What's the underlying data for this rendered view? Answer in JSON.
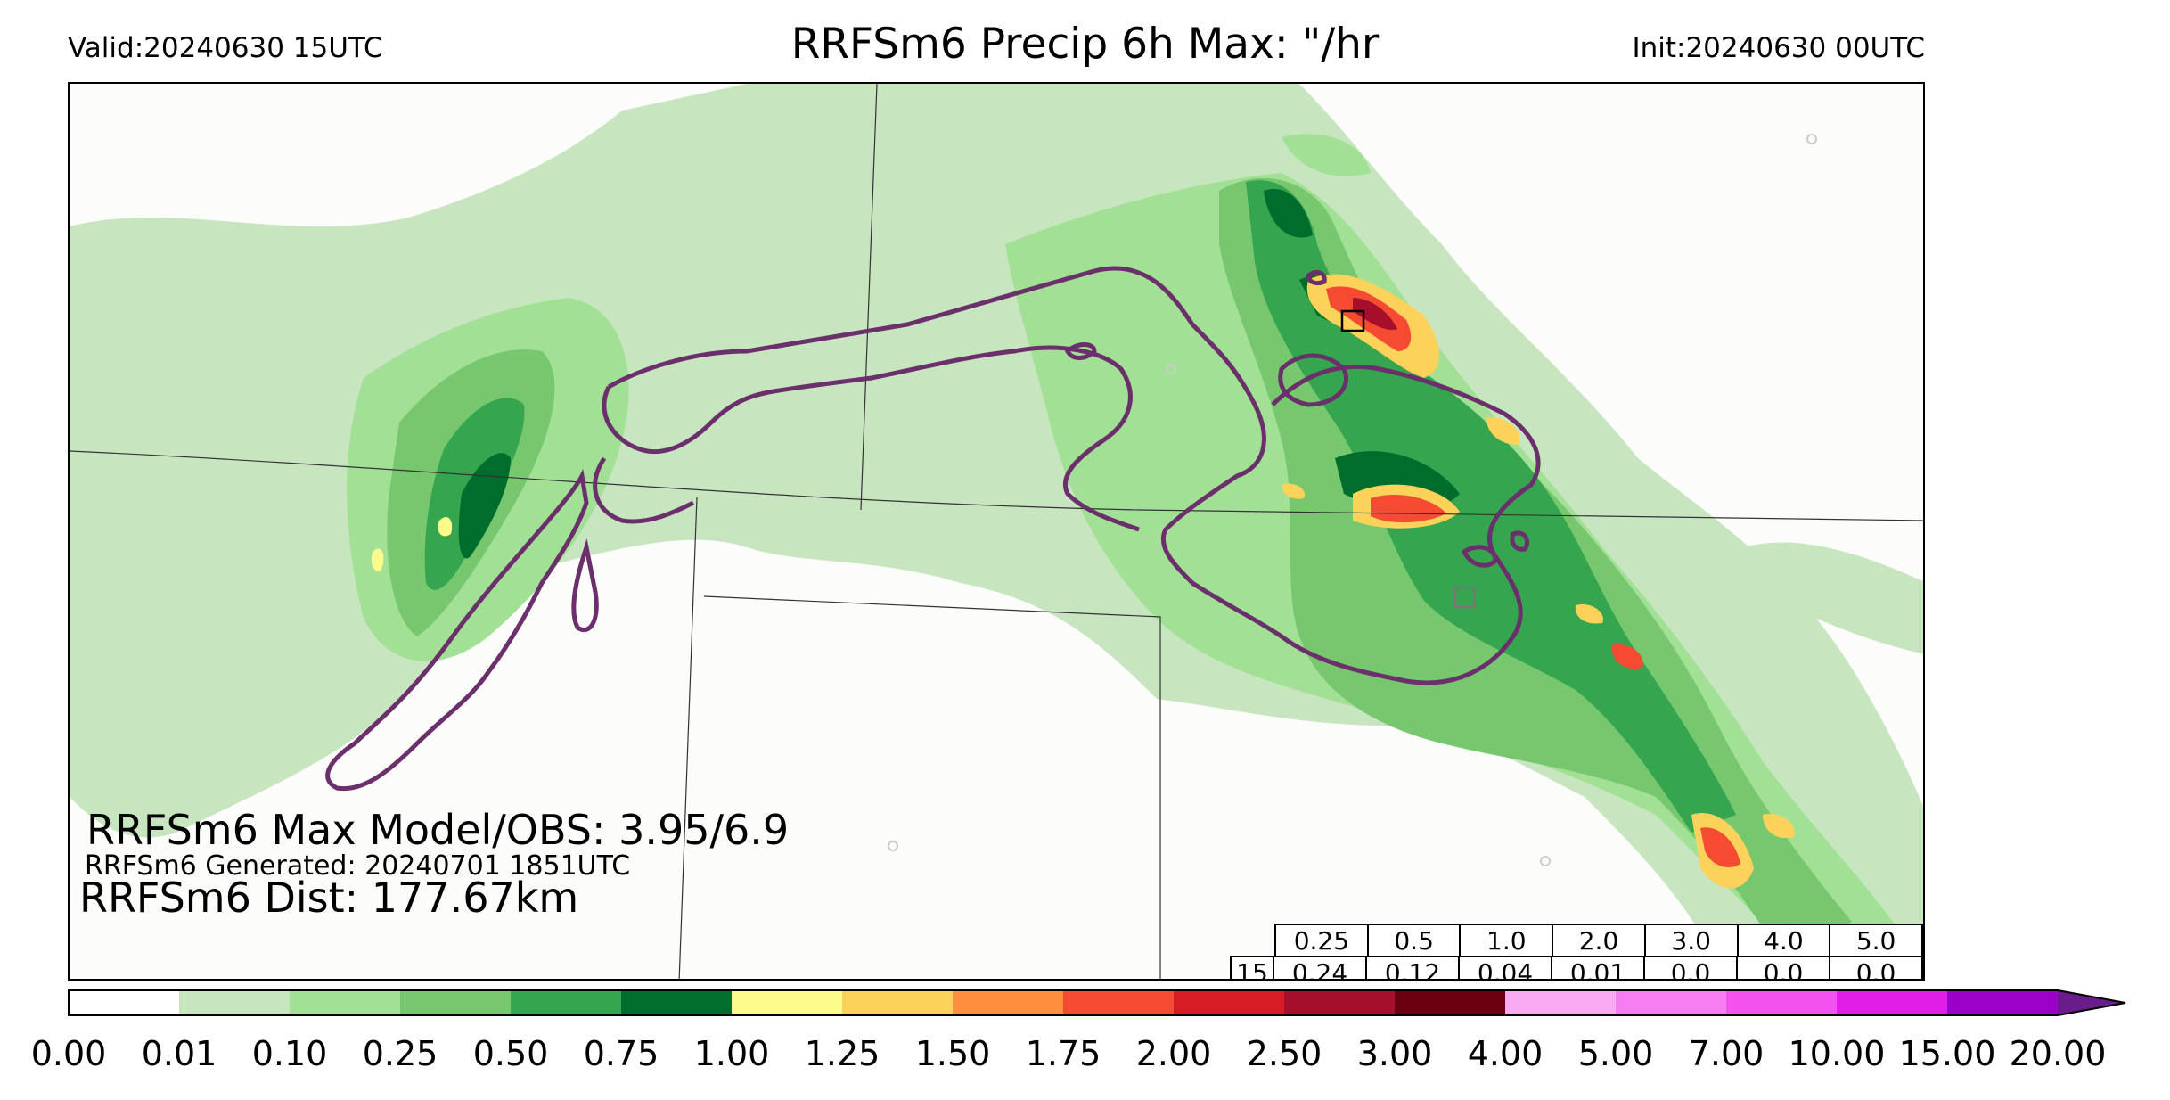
{
  "header": {
    "valid": "Valid:20240630 15UTC",
    "title": "RRFSm6 Precip 6h Max: \"/hr",
    "init": "Init:20240630 00UTC"
  },
  "stats": {
    "max_model_obs": "RRFSm6 Max Model/OBS: 3.95/6.9",
    "generated": "RRFSm6 Generated: 20240701 1851UTC",
    "dist": "RRFSm6 Dist: 177.67km"
  },
  "threshold_table": {
    "thresholds": [
      "0.25",
      "0.5",
      "1.0",
      "2.0",
      "3.0",
      "4.0",
      "5.0"
    ],
    "row_label": "15",
    "values": [
      "0.24",
      "0.12",
      "0.04",
      "0.01",
      "0.0",
      "0.0",
      "0.0"
    ]
  },
  "colorbar": {
    "ticks": [
      "0.00",
      "0.01",
      "0.10",
      "0.25",
      "0.50",
      "0.75",
      "1.00",
      "1.25",
      "1.50",
      "1.75",
      "2.00",
      "2.50",
      "3.00",
      "4.00",
      "5.00",
      "7.00",
      "10.00",
      "15.00",
      "20.00"
    ],
    "colors": [
      "#ffffff",
      "#c7e6c0",
      "#a2e096",
      "#77c76e",
      "#36a54f",
      "#006d2c",
      "#fdfb8c",
      "#fdd25a",
      "#fd8f3f",
      "#f54b33",
      "#d81c25",
      "#a50f2b",
      "#6a0010",
      "#f9aaf0",
      "#f77ef0",
      "#f252ee",
      "#e01ee6",
      "#9a00c8"
    ],
    "extend_color": "#6b1c8c"
  },
  "colors": {
    "obs_contour": "#6b2f6b",
    "boundary": "#333333"
  }
}
